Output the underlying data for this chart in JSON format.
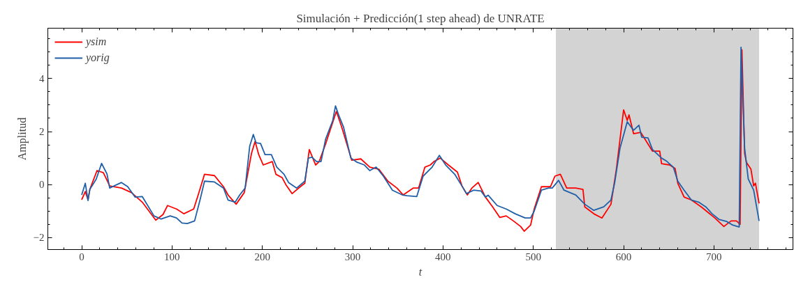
{
  "chart_data": {
    "type": "line",
    "title": "Simulación + Predicción(1 step ahead) de UNRATE",
    "xlabel": "t",
    "ylabel": "Amplitud",
    "xlim": [
      -37.5,
      787.5
    ],
    "ylim": [
      -2.45,
      5.9
    ],
    "xticks": [
      0,
      100,
      200,
      300,
      400,
      500,
      600,
      700
    ],
    "yticks": [
      {
        "value": -2,
        "label": "−2"
      },
      0,
      2,
      4
    ],
    "grid": false,
    "legend": "top left",
    "line_style": "solid",
    "marker": "none",
    "bands": [
      {
        "axis": "x",
        "from": 525,
        "to": 750,
        "label": null,
        "color": "#d3d3d3"
      }
    ],
    "series": [
      {
        "name": "ysim",
        "color": "#ff0000",
        "x": [
          0,
          4,
          7,
          9,
          17,
          24,
          31,
          44,
          55,
          67,
          82,
          90,
          95,
          105,
          113,
          124,
          129,
          136,
          147,
          157,
          162,
          171,
          180,
          188,
          192,
          196,
          201,
          211,
          215,
          222,
          226,
          233,
          242,
          247,
          252,
          259,
          263,
          270,
          275,
          282,
          288,
          296,
          299,
          309,
          319,
          329,
          339,
          349,
          356,
          367,
          373,
          380,
          386,
          390,
          397,
          406,
          416,
          421,
          427,
          432,
          439,
          447,
          455,
          463,
          470,
          478,
          486,
          490,
          497,
          501,
          509,
          519,
          524,
          530,
          537,
          547,
          555,
          557,
          567,
          576,
          586,
          592,
          600,
          604,
          606,
          611,
          619,
          632,
          640,
          642,
          651,
          657,
          660,
          667,
          675,
          686,
          701,
          711,
          719,
          725,
          729,
          731,
          734,
          736,
          741,
          744,
          746,
          750
        ],
        "values": [
          -0.57,
          -0.26,
          -0.57,
          -0.18,
          0.53,
          0.45,
          -0.05,
          -0.13,
          -0.3,
          -0.66,
          -1.34,
          -1.13,
          -0.79,
          -0.92,
          -1.1,
          -0.92,
          -0.39,
          0.39,
          0.34,
          -0.08,
          -0.39,
          -0.74,
          -0.3,
          1.18,
          1.63,
          1.13,
          0.74,
          0.87,
          0.39,
          0.26,
          0.0,
          -0.34,
          -0.08,
          0.05,
          1.32,
          0.74,
          0.87,
          1.53,
          2.05,
          2.76,
          2.16,
          1.26,
          0.92,
          0.97,
          0.66,
          0.58,
          0.13,
          -0.13,
          -0.39,
          -0.13,
          -0.13,
          0.66,
          0.74,
          0.87,
          1.0,
          0.74,
          0.47,
          -0.05,
          -0.39,
          -0.13,
          0.08,
          -0.47,
          -0.84,
          -1.24,
          -1.18,
          -1.37,
          -1.58,
          -1.76,
          -1.53,
          -0.92,
          -0.08,
          -0.08,
          0.32,
          0.39,
          -0.13,
          -0.13,
          -0.18,
          -0.84,
          -1.1,
          -1.26,
          -0.74,
          0.58,
          2.82,
          2.42,
          2.63,
          1.92,
          1.97,
          1.26,
          1.26,
          0.79,
          0.74,
          0.61,
          0.05,
          -0.47,
          -0.58,
          -0.84,
          -1.26,
          -1.58,
          -1.37,
          -1.37,
          -1.5,
          5.08,
          1.18,
          0.84,
          0.58,
          -0.05,
          0.05,
          -0.71
        ]
      },
      {
        "name": "yorig",
        "color": "#1f5fa8",
        "x": [
          0,
          4,
          7,
          9,
          16,
          22,
          28,
          31,
          44,
          51,
          59,
          67,
          80,
          88,
          98,
          105,
          111,
          117,
          125,
          131,
          136,
          147,
          157,
          162,
          170,
          175,
          181,
          186,
          190,
          193,
          198,
          203,
          210,
          216,
          224,
          229,
          238,
          247,
          251,
          255,
          260,
          265,
          270,
          278,
          281,
          285,
          290,
          298,
          305,
          313,
          319,
          326,
          334,
          344,
          355,
          360,
          371,
          378,
          388,
          396,
          403,
          413,
          421,
          426,
          434,
          442,
          447,
          450,
          460,
          470,
          480,
          491,
          497,
          501,
          509,
          517,
          521,
          528,
          534,
          547,
          557,
          567,
          578,
          586,
          590,
          596,
          604,
          611,
          617,
          620,
          627,
          632,
          642,
          647,
          655,
          660,
          667,
          675,
          683,
          691,
          698,
          706,
          714,
          721,
          728,
          730,
          734,
          738,
          744,
          750
        ],
        "values": [
          -0.39,
          0.05,
          -0.6,
          -0.18,
          0.2,
          0.8,
          0.4,
          -0.13,
          0.08,
          -0.08,
          -0.47,
          -0.45,
          -1.18,
          -1.3,
          -1.18,
          -1.26,
          -1.45,
          -1.47,
          -1.37,
          -0.58,
          0.13,
          0.1,
          -0.13,
          -0.58,
          -0.66,
          -0.39,
          -0.13,
          1.45,
          1.89,
          1.58,
          1.55,
          1.13,
          1.13,
          0.66,
          0.39,
          0.08,
          -0.13,
          0.13,
          1.0,
          1.03,
          0.87,
          0.87,
          1.71,
          2.42,
          2.97,
          2.58,
          2.16,
          1.0,
          0.84,
          0.74,
          0.53,
          0.66,
          0.32,
          -0.21,
          -0.39,
          -0.42,
          -0.45,
          0.32,
          0.66,
          1.1,
          0.74,
          0.39,
          -0.05,
          -0.34,
          -0.21,
          -0.24,
          -0.47,
          -0.4,
          -0.79,
          -0.92,
          -1.1,
          -1.26,
          -1.26,
          -1.0,
          -0.21,
          -0.13,
          -0.13,
          0.16,
          -0.21,
          -0.39,
          -0.74,
          -0.97,
          -0.84,
          -0.58,
          0.05,
          1.37,
          2.37,
          2.05,
          2.24,
          1.79,
          1.76,
          1.32,
          1.0,
          0.9,
          0.66,
          0.13,
          -0.21,
          -0.58,
          -0.66,
          -0.84,
          -1.1,
          -1.32,
          -1.39,
          -1.53,
          -1.6,
          5.18,
          1.37,
          0.21,
          -0.21,
          -1.37
        ]
      }
    ]
  }
}
